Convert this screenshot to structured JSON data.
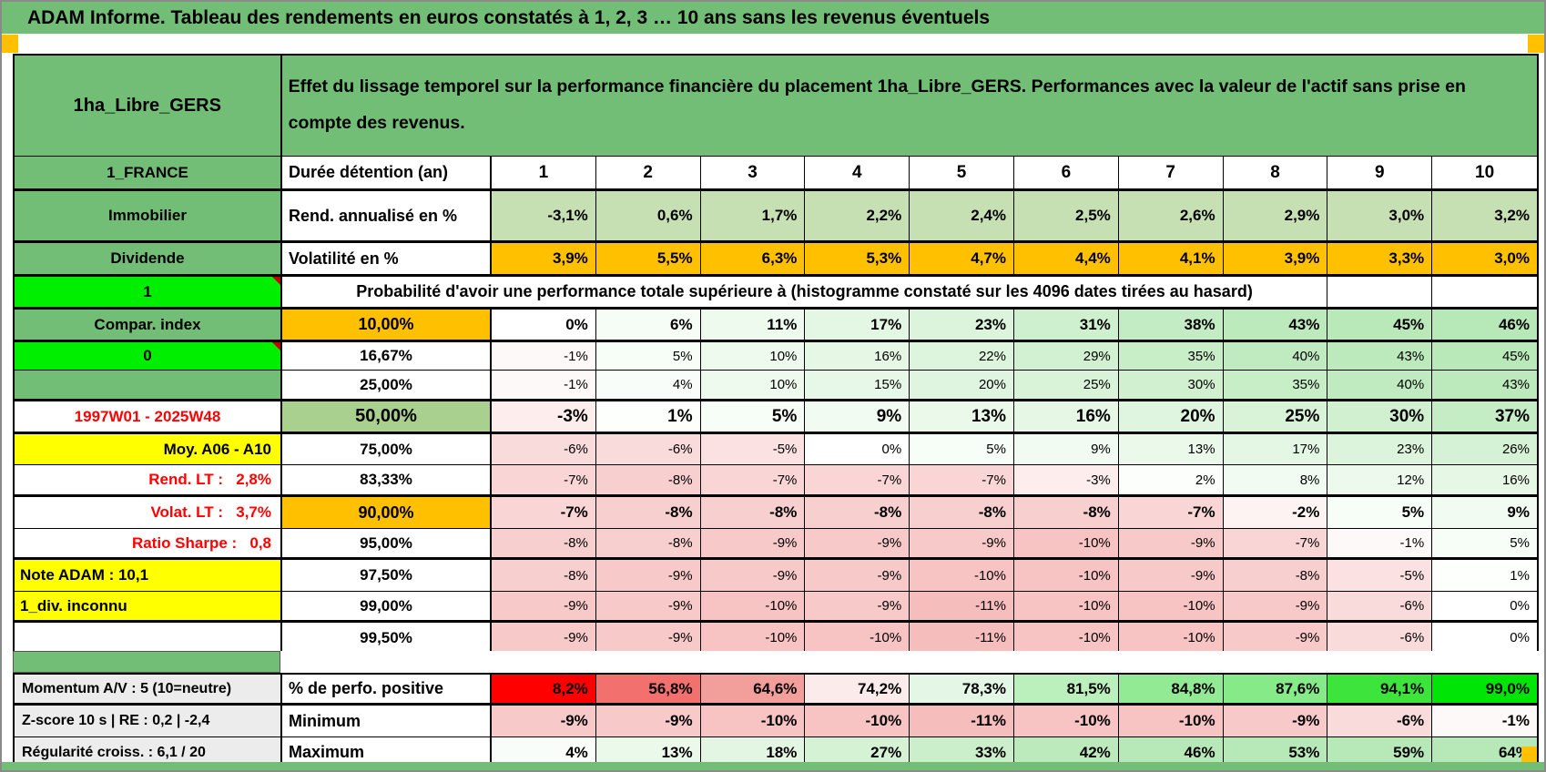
{
  "title": "ADAM Informe. Tableau des rendements en euros constatés à 1, 2, 3 … 10 ans sans les revenus éventuels",
  "header": {
    "name": "1ha_Libre_GERS",
    "description": "Effet du lissage temporel sur la performance financière du placement 1ha_Libre_GERS. Performances avec la valeur de l'actif sans prise en compte des revenus."
  },
  "colors": {
    "green": "#73BE76",
    "sage": "#A9D08E",
    "bright_green": "#00EE00",
    "orange": "#FFC000",
    "yellow": "#FFFF00",
    "red_text": "#FF0000",
    "gray_label": "#ECECEC",
    "rend_bg": "#C6E0B4",
    "scale_green_max": "#B7E8B7",
    "scale_pink_max": "#F6BDBD",
    "perfo_scale": [
      "#FF0000",
      "#F2716E",
      "#F29E9A",
      "#FBECEB",
      "#E4F7E6",
      "#BBF0BD",
      "#92EA94",
      "#85EA87",
      "#3CE43C",
      "#00E406"
    ]
  },
  "chart_data": {
    "type": "table",
    "title": "Probabilité d'avoir une performance totale supérieure à (histogramme constaté sur les 4096 dates tirées au hasard)",
    "columns": [
      "1",
      "2",
      "3",
      "4",
      "5",
      "6",
      "7",
      "8",
      "9",
      "10"
    ]
  },
  "main_rows": [
    {
      "left": "1_FRANCE",
      "left_style": "s-green",
      "mid": "Durée détention (an)",
      "mid_style": "m-left",
      "scale": "white",
      "center": true,
      "bold": true,
      "values": [
        "1",
        "2",
        "3",
        "4",
        "5",
        "6",
        "7",
        "8",
        "9",
        "10"
      ]
    },
    {
      "left": "Immobilier",
      "left_style": "s-green",
      "mid": "Rend. annualisé en %",
      "mid_style": "m-left",
      "scale": "rend",
      "bold": true,
      "values": [
        "-3,1%",
        "0,6%",
        "1,7%",
        "2,2%",
        "2,4%",
        "2,5%",
        "2,6%",
        "2,9%",
        "3,0%",
        "3,2%"
      ]
    },
    {
      "left": "Dividende",
      "left_style": "s-green",
      "mid": "Volatilité en %",
      "mid_style": "m-left",
      "scale": "vol",
      "bold": true,
      "values": [
        "3,9%",
        "5,5%",
        "6,3%",
        "5,3%",
        "4,7%",
        "4,4%",
        "4,1%",
        "3,9%",
        "3,3%",
        "3,0%"
      ]
    },
    {
      "left": "1",
      "left_style": "s-bright",
      "left_note": true,
      "type": "span",
      "trailing_empty": 2,
      "text": "Probabilité d'avoir une performance totale supérieure à (histogramme constaté sur les 4096 dates tirées au hasard)"
    },
    {
      "left": "Compar. index",
      "left_style": "s-green",
      "mid": "10,00%",
      "mid_style": "m-orange",
      "scale": "std",
      "bold": true,
      "values": [
        "0%",
        "6%",
        "11%",
        "17%",
        "23%",
        "31%",
        "38%",
        "43%",
        "45%",
        "46%"
      ]
    },
    {
      "left": "0",
      "left_style": "s-bright",
      "left_note": true,
      "mid": "16,67%",
      "mid_style": "",
      "scale": "std",
      "bold": false,
      "values": [
        "-1%",
        "5%",
        "10%",
        "16%",
        "22%",
        "29%",
        "35%",
        "40%",
        "43%",
        "45%"
      ]
    },
    {
      "left": "",
      "left_style": "s-green",
      "mid": "25,00%",
      "mid_style": "",
      "scale": "std",
      "bold": false,
      "values": [
        "-1%",
        "4%",
        "10%",
        "15%",
        "20%",
        "25%",
        "30%",
        "35%",
        "40%",
        "43%"
      ]
    },
    {
      "left": "1997W01 - 2025W48",
      "left_style": "s-red-c",
      "mid": "50,00%",
      "mid_style": "m-sage",
      "scale": "std",
      "bold": true,
      "big": true,
      "values": [
        "-3%",
        "1%",
        "5%",
        "9%",
        "13%",
        "16%",
        "20%",
        "25%",
        "30%",
        "37%"
      ]
    },
    {
      "left": "Moy. A06 - A10",
      "left_style": "s-yellow-r",
      "mid": "75,00%",
      "mid_style": "",
      "scale": "std",
      "bold": false,
      "values": [
        "-6%",
        "-6%",
        "-5%",
        "0%",
        "5%",
        "9%",
        "13%",
        "17%",
        "23%",
        "26%"
      ]
    },
    {
      "left": "Rend. LT :   2,8%",
      "left_style": "s-red",
      "mid": "83,33%",
      "mid_style": "",
      "scale": "std",
      "bold": false,
      "values": [
        "-7%",
        "-8%",
        "-7%",
        "-7%",
        "-7%",
        "-3%",
        "2%",
        "8%",
        "12%",
        "16%"
      ]
    },
    {
      "left": "Volat. LT :   3,7%",
      "left_style": "s-red",
      "mid": "90,00%",
      "mid_style": "m-orange",
      "scale": "std",
      "bold": true,
      "values": [
        "-7%",
        "-8%",
        "-8%",
        "-8%",
        "-8%",
        "-8%",
        "-7%",
        "-2%",
        "5%",
        "9%"
      ]
    },
    {
      "left": "Ratio Sharpe :   0,8",
      "left_style": "s-red",
      "mid": "95,00%",
      "mid_style": "",
      "scale": "std",
      "bold": false,
      "values": [
        "-8%",
        "-8%",
        "-9%",
        "-9%",
        "-9%",
        "-10%",
        "-9%",
        "-7%",
        "-1%",
        "5%"
      ]
    },
    {
      "left": "Note ADAM : 10,1",
      "left_style": "s-yellow-l",
      "mid": "97,50%",
      "mid_style": "",
      "scale": "std",
      "bold": false,
      "values": [
        "-8%",
        "-9%",
        "-9%",
        "-9%",
        "-10%",
        "-10%",
        "-9%",
        "-8%",
        "-5%",
        "1%"
      ]
    },
    {
      "left": "1_div. inconnu",
      "left_style": "s-yellow-l",
      "mid": "99,00%",
      "mid_style": "",
      "scale": "std",
      "bold": false,
      "values": [
        "-9%",
        "-9%",
        "-10%",
        "-9%",
        "-11%",
        "-10%",
        "-10%",
        "-9%",
        "-6%",
        "0%"
      ]
    },
    {
      "left": "",
      "left_style": "s-white",
      "mid": "99,50%",
      "mid_style": "",
      "scale": "std",
      "bold": false,
      "values": [
        "-9%",
        "-9%",
        "-10%",
        "-10%",
        "-11%",
        "-10%",
        "-10%",
        "-9%",
        "-6%",
        "0%"
      ]
    }
  ],
  "bottom_rows": [
    {
      "left": "Momentum A/V : 5 (10=neutre)",
      "left_style": "s-gray",
      "mid": "% de perfo. positive",
      "mid_style": "m-left",
      "scale": "perfo",
      "bold": true,
      "values": [
        "8,2%",
        "56,8%",
        "64,6%",
        "74,2%",
        "78,3%",
        "81,5%",
        "84,8%",
        "87,6%",
        "94,1%",
        "99,0%"
      ]
    },
    {
      "left": "Z-score 10 s | RE : 0,2 | -2,4",
      "left_style": "s-gray",
      "mid": "Minimum",
      "mid_style": "m-left",
      "scale": "std",
      "bold": true,
      "values": [
        "-9%",
        "-9%",
        "-10%",
        "-10%",
        "-11%",
        "-10%",
        "-10%",
        "-9%",
        "-6%",
        "-1%"
      ]
    },
    {
      "left": "Régularité croiss. : 6,1 / 20",
      "left_style": "s-gray",
      "mid": "Maximum",
      "mid_style": "m-left",
      "scale": "std",
      "bold": true,
      "values": [
        "4%",
        "13%",
        "18%",
        "27%",
        "33%",
        "42%",
        "46%",
        "53%",
        "59%",
        "64%"
      ]
    }
  ]
}
